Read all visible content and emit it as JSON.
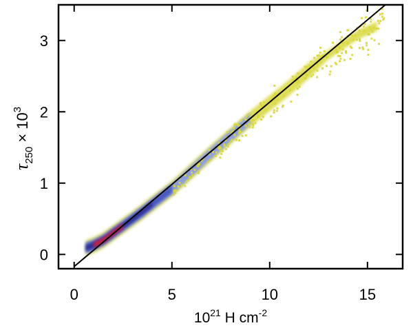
{
  "chart_data": {
    "type": "heatmap",
    "subtype": "2D density histogram with linear fit",
    "xlabel": {
      "base": "10",
      "exp": "21",
      "rest": " H cm",
      "unit_exp": "-2"
    },
    "ylabel": {
      "symbol": "τ",
      "sub": "250",
      "times": " × 10",
      "sup": "3"
    },
    "xlim": [
      -0.8,
      16.8
    ],
    "ylim": [
      -0.2,
      3.5
    ],
    "xticks": [
      0,
      5,
      10,
      15
    ],
    "xtick_labels": [
      "0",
      "5",
      "10",
      "15"
    ],
    "yticks": [
      0,
      1,
      2,
      3
    ],
    "ytick_labels": [
      "0",
      "1",
      "2",
      "3"
    ],
    "fit_line": {
      "x": [
        0,
        16
      ],
      "y": [
        -0.17,
        3.52
      ]
    },
    "colormap": [
      "#d8d838",
      "#8899e8",
      "#4455c0",
      "#2a2a8a",
      "#d02040"
    ],
    "density_ridge": {
      "x": [
        0.6,
        1.0,
        1.5,
        2.0,
        2.5,
        3.0,
        3.5,
        4.0,
        5.0,
        6.0,
        7.0,
        8.0,
        9.0,
        10.0,
        11.0,
        12.0,
        13.0,
        14.5,
        15.5
      ],
      "y": [
        0.09,
        0.13,
        0.2,
        0.3,
        0.4,
        0.5,
        0.6,
        0.71,
        0.92,
        1.17,
        1.42,
        1.66,
        1.9,
        2.12,
        2.34,
        2.58,
        2.8,
        3.08,
        3.2
      ]
    },
    "grid": false,
    "legend": "none"
  }
}
